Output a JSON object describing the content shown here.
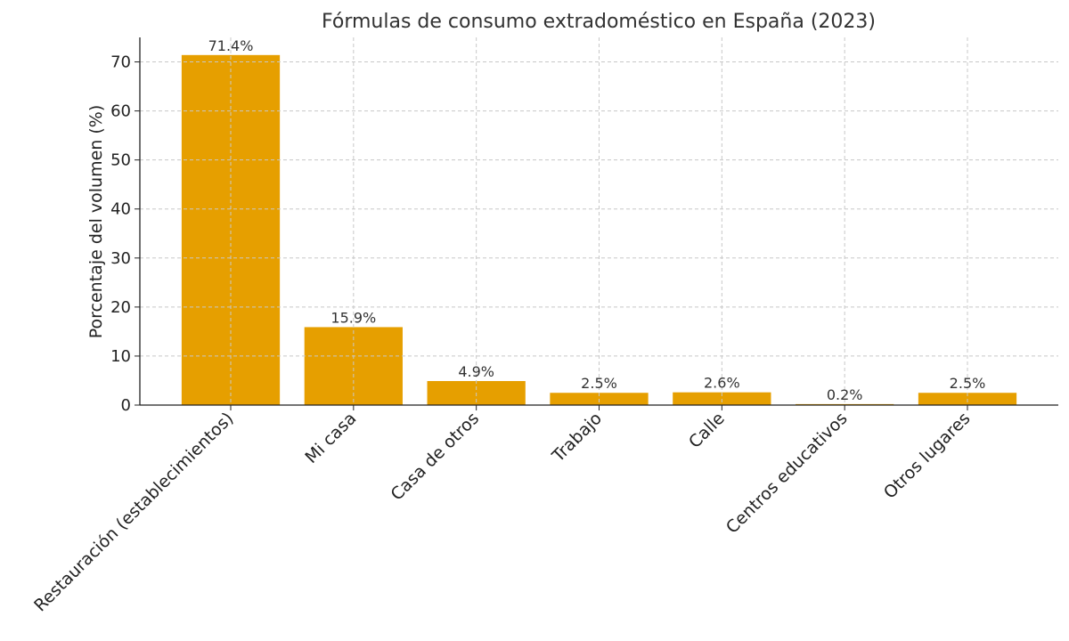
{
  "chart_data": {
    "type": "bar",
    "title": "Fórmulas de consumo extradoméstico en España (2023)",
    "xlabel": "",
    "ylabel": "Porcentaje del volumen (%)",
    "categories": [
      "Restauración (establecimientos)",
      "Mi casa",
      "Casa de otros",
      "Trabajo",
      "Calle",
      "Centros educativos",
      "Otros lugares"
    ],
    "values": [
      71.4,
      15.9,
      4.9,
      2.5,
      2.6,
      0.2,
      2.5
    ],
    "data_labels": [
      "71.4%",
      "15.9%",
      "4.9%",
      "2.5%",
      "2.6%",
      "0.2%",
      "2.5%"
    ],
    "ylim": [
      0,
      75
    ],
    "yticks": [
      0,
      10,
      20,
      30,
      40,
      50,
      60,
      70
    ],
    "grid": true,
    "grid_style": "dashed",
    "bar_color": "#E69F00",
    "legend": "none"
  }
}
